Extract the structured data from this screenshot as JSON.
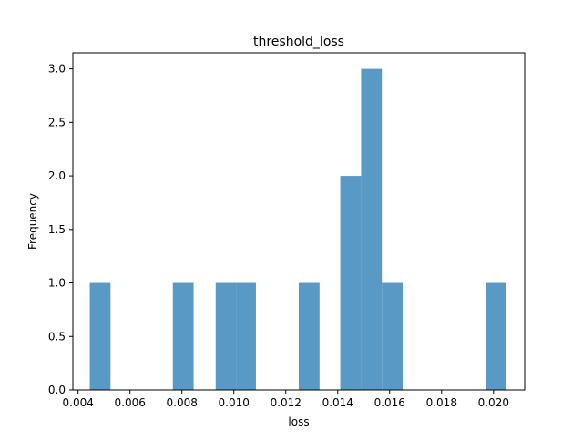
{
  "chart_data": {
    "type": "bar",
    "title": "threshold_loss",
    "xlabel": "loss",
    "ylabel": "Frequency",
    "xlim": [
      0.0038,
      0.0212
    ],
    "ylim": [
      0,
      3.15
    ],
    "x_ticks": [
      0.004,
      0.006,
      0.008,
      0.01,
      0.012,
      0.014,
      0.016,
      0.018,
      0.02
    ],
    "x_tick_labels": [
      "0.004",
      "0.006",
      "0.008",
      "0.010",
      "0.012",
      "0.014",
      "0.016",
      "0.018",
      "0.020"
    ],
    "y_ticks": [
      0.0,
      0.5,
      1.0,
      1.5,
      2.0,
      2.5,
      3.0
    ],
    "y_tick_labels": [
      "0.0",
      "0.5",
      "1.0",
      "1.5",
      "2.0",
      "2.5",
      "3.0"
    ],
    "bins": [
      {
        "x0": 0.00445,
        "x1": 0.00525,
        "count": 1
      },
      {
        "x0": 0.00765,
        "x1": 0.00845,
        "count": 1
      },
      {
        "x0": 0.0093,
        "x1": 0.0101,
        "count": 1
      },
      {
        "x0": 0.0101,
        "x1": 0.01085,
        "count": 1
      },
      {
        "x0": 0.0125,
        "x1": 0.0133,
        "count": 1
      },
      {
        "x0": 0.0141,
        "x1": 0.0149,
        "count": 2
      },
      {
        "x0": 0.0149,
        "x1": 0.0157,
        "count": 3
      },
      {
        "x0": 0.0157,
        "x1": 0.0165,
        "count": 1
      },
      {
        "x0": 0.0197,
        "x1": 0.0205,
        "count": 1
      }
    ],
    "bar_color": "#5899c6",
    "grid": false,
    "legend": "none"
  }
}
